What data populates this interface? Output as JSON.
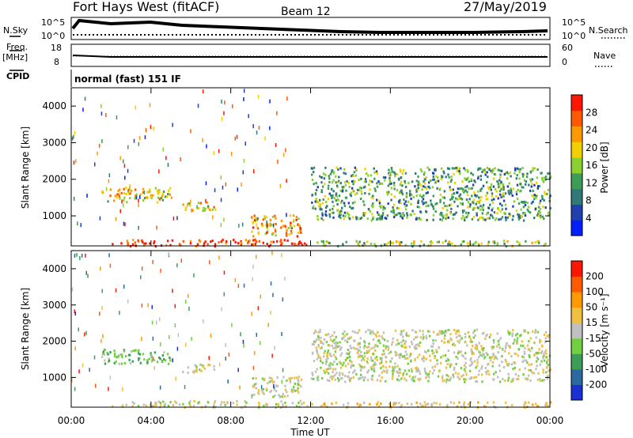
{
  "header": {
    "station": "Fort Hays West (fitACF)",
    "beam": "Beam 12",
    "date": "27/May/2019"
  },
  "top_panels": {
    "nsky_label": "N.Sky",
    "nsky_ticks": [
      "10^5",
      "10^0"
    ],
    "nsearch_label": "N.Search",
    "nsearch_ticks": [
      "10^5",
      "10^0"
    ],
    "freq_label": "Freq.",
    "freq_unit": "[MHz]",
    "freq_ticks": [
      "18",
      "8"
    ],
    "nave_label": "Nave",
    "nave_ticks": [
      "60",
      "0"
    ],
    "cpid_label": "CPID",
    "cpid_text": "normal (fast) 151 IF"
  },
  "chart_data": [
    {
      "type": "heatmap",
      "name": "power",
      "ylabel": "Slant Range [km]",
      "y_ticks": [
        "4000",
        "3000",
        "2000",
        "1000"
      ],
      "ylim": [
        180,
        4500
      ],
      "xlim": [
        0,
        24
      ],
      "colorbar_label": "Power [dB]",
      "colorbar_ticks": [
        "28",
        "24",
        "20",
        "16",
        "12",
        "8",
        "4"
      ],
      "colorbar_colors": [
        "#0020ff",
        "#2040b0",
        "#2f7a78",
        "#3c9c58",
        "#8cd030",
        "#f0d000",
        "#ff9900",
        "#ff5a00",
        "#ff1500"
      ],
      "features": [
        {
          "t0": 1.5,
          "t1": 5.0,
          "r0": 1400,
          "r1": 1800,
          "level": 5
        },
        {
          "t0": 5.5,
          "t1": 7.2,
          "r0": 1150,
          "r1": 1400,
          "level": 5
        },
        {
          "t0": 9.0,
          "t1": 11.5,
          "r0": 450,
          "r1": 1050,
          "level": 6
        },
        {
          "t0": 12.0,
          "t1": 24.0,
          "r0": 900,
          "r1": 2350,
          "level": 3
        },
        {
          "t0": 2.0,
          "t1": 11.8,
          "r0": 200,
          "r1": 380,
          "level": 8
        },
        {
          "t0": 12.0,
          "t1": 24.0,
          "r0": 200,
          "r1": 350,
          "level": 4
        }
      ]
    },
    {
      "type": "heatmap",
      "name": "velocity",
      "ylabel": "Slant Range [km]",
      "y_ticks": [
        "4000",
        "3000",
        "2000",
        "1000"
      ],
      "ylim": [
        180,
        4500
      ],
      "xlim": [
        0,
        24
      ],
      "colorbar_label": "Velocity [m s⁻¹]",
      "colorbar_ticks": [
        "200",
        "100",
        "50",
        "15",
        "-15",
        "-50",
        "-100",
        "-200"
      ],
      "colorbar_colors": [
        "#1a30d0",
        "#2a6aa0",
        "#3c9c58",
        "#70d040",
        "#c0c0c0",
        "#f0c040",
        "#ff9900",
        "#ff5a00",
        "#ff1500"
      ],
      "x_ticks": [
        "00:00",
        "04:00",
        "08:00",
        "12:00",
        "16:00",
        "20:00",
        "00:00"
      ],
      "xlabel": "Time UT"
    }
  ]
}
